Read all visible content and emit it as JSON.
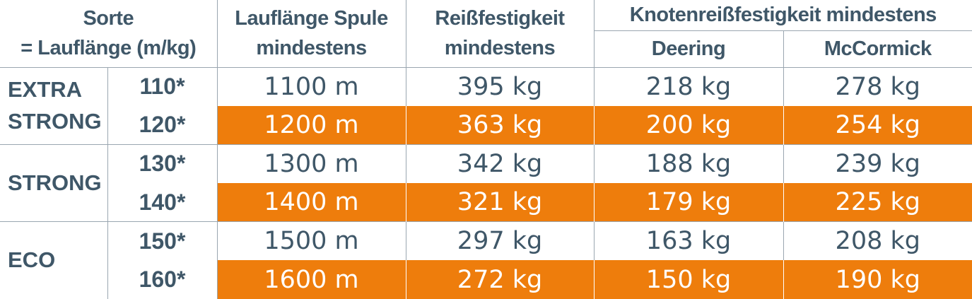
{
  "header": {
    "sorte_line1": "Sorte",
    "sorte_line2": "= Lauflänge (m/kg)",
    "laenge_line1": "Lauflänge Spule",
    "laenge_line2": "mindestens",
    "reiss_line1": "Reißfestigkeit",
    "reiss_line2": "mindestens",
    "knoten": "Knotenreißfestigkeit mindestens",
    "deering": "Deering",
    "mccormick": "McCormick"
  },
  "groups": [
    {
      "line1": "EXTRA",
      "line2": "STRONG"
    },
    {
      "line1": "STRONG"
    },
    {
      "line1": "ECO"
    }
  ],
  "rows": [
    {
      "code": "110*",
      "laenge": "1100 m",
      "reiss": "395 kg",
      "deering": "218 kg",
      "mccormick": "278 kg"
    },
    {
      "code": "120*",
      "laenge": "1200 m",
      "reiss": "363 kg",
      "deering": "200 kg",
      "mccormick": "254 kg"
    },
    {
      "code": "130*",
      "laenge": "1300 m",
      "reiss": "342 kg",
      "deering": "188 kg",
      "mccormick": "239 kg"
    },
    {
      "code": "140*",
      "laenge": "1400 m",
      "reiss": "321 kg",
      "deering": "179 kg",
      "mccormick": "225 kg"
    },
    {
      "code": "150*",
      "laenge": "1500 m",
      "reiss": "297 kg",
      "deering": "163 kg",
      "mccormick": "208 kg"
    },
    {
      "code": "160*",
      "laenge": "1600 m",
      "reiss": "272 kg",
      "deering": "150 kg",
      "mccormick": "190 kg"
    }
  ],
  "colors": {
    "text": "#3f5768",
    "highlight": "#ee7d0c",
    "highlight_text": "#ffffff",
    "grid": "#9aa6b0"
  }
}
